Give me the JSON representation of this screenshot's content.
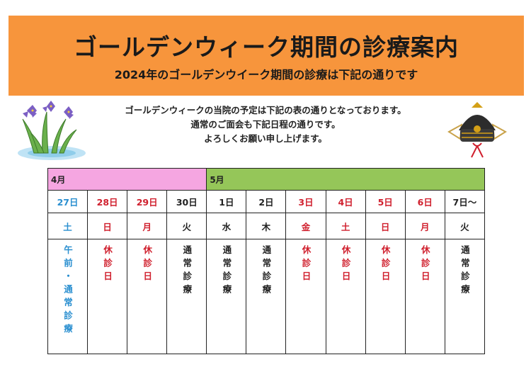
{
  "header": {
    "title": "ゴールデンウィーク期間の診療案内",
    "subtitle": "2024年のゴールデンウイーク期間の診療は下記の通りです"
  },
  "intro": [
    "ゴールデンウィークの当院の予定は下記の表の通りとなっております。",
    "通常のご面会も下記日程の通りです。",
    "よろしくお願い申し上げます。"
  ],
  "table": {
    "months": [
      "4月",
      "5月"
    ],
    "columns": [
      {
        "date": "27日",
        "day": "土",
        "status": "午前・通常診療",
        "color": "#2a8fd0"
      },
      {
        "date": "28日",
        "day": "日",
        "status": "休診日",
        "color": "#d0202e"
      },
      {
        "date": "29日",
        "day": "月",
        "status": "休診日",
        "color": "#d0202e"
      },
      {
        "date": "30日",
        "day": "火",
        "status": "通常診療",
        "color": "#222222"
      },
      {
        "date": "1日",
        "day": "水",
        "status": "通常診療",
        "color": "#222222"
      },
      {
        "date": "2日",
        "day": "木",
        "status": "通常診療",
        "color": "#222222"
      },
      {
        "date": "3日",
        "day": "金",
        "status": "休診日",
        "color": "#d0202e"
      },
      {
        "date": "4日",
        "day": "土",
        "status": "休診日",
        "color": "#d0202e"
      },
      {
        "date": "5日",
        "day": "日",
        "status": "休診日",
        "color": "#d0202e"
      },
      {
        "date": "6日",
        "day": "月",
        "status": "休診日",
        "color": "#d0202e"
      },
      {
        "date": "7日～",
        "day": "火",
        "status": "通常診療",
        "color": "#222222"
      }
    ]
  }
}
